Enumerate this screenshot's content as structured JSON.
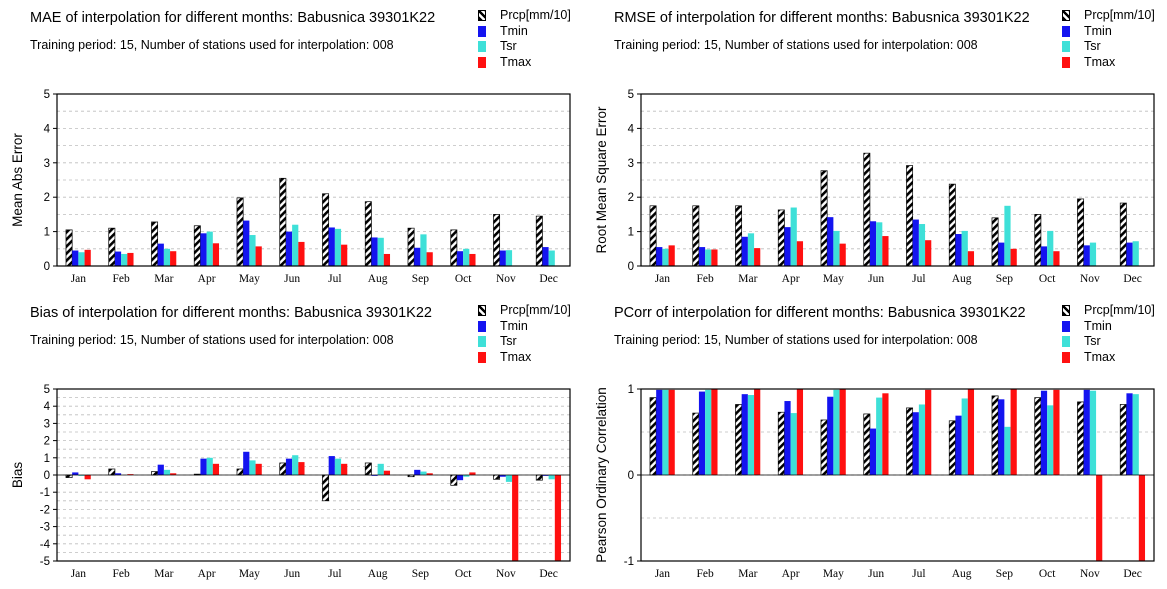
{
  "colors": {
    "prcp": "hatched-black",
    "tmin": "#1414f0",
    "tsr": "#3ee0d8",
    "tmax": "#ff1010"
  },
  "icons": {
    "prcp": "hatched-swatch-icon",
    "tmin": "blue-swatch-icon",
    "tsr": "cyan-swatch-icon",
    "tmax": "red-swatch-icon"
  },
  "legend": [
    "Prcp[mm/10]",
    "Tmin",
    "Tsr",
    "Tmax"
  ],
  "subtitle": "Training period: 15, Number of stations used for interpolation: 008",
  "chart_data": [
    {
      "type": "bar",
      "title": "MAE of interpolation for different months: Babusnica  39301K22",
      "ylabel": "Mean Abs Error",
      "ylim": [
        0,
        5
      ],
      "yticks": [
        0,
        1,
        2,
        3,
        4,
        5
      ],
      "grid": true,
      "legend_position": "top-right",
      "categories": [
        "Jan",
        "Feb",
        "Mar",
        "Apr",
        "May",
        "Jun",
        "Jul",
        "Aug",
        "Sep",
        "Oct",
        "Nov",
        "Dec"
      ],
      "series": [
        {
          "name": "Prcp[mm/10]",
          "values": [
            1.05,
            1.1,
            1.28,
            1.17,
            1.98,
            2.55,
            2.1,
            1.87,
            1.1,
            1.05,
            1.5,
            1.45
          ]
        },
        {
          "name": "Tmin",
          "values": [
            0.45,
            0.42,
            0.65,
            0.95,
            1.32,
            1.0,
            1.12,
            0.83,
            0.53,
            0.43,
            0.45,
            0.55
          ]
        },
        {
          "name": "Tsr",
          "values": [
            0.4,
            0.35,
            0.5,
            1.0,
            0.9,
            1.2,
            1.08,
            0.82,
            0.92,
            0.5,
            0.46,
            0.45
          ]
        },
        {
          "name": "Tmax",
          "values": [
            0.47,
            0.38,
            0.43,
            0.66,
            0.57,
            0.7,
            0.62,
            0.35,
            0.4,
            0.35,
            0.0,
            0.0
          ]
        }
      ]
    },
    {
      "type": "bar",
      "title": "RMSE of interpolation for different months: Babusnica  39301K22",
      "ylabel": "Root Mean Square Error",
      "ylim": [
        0,
        5
      ],
      "yticks": [
        0,
        1,
        2,
        3,
        4,
        5
      ],
      "grid": true,
      "legend_position": "top-right",
      "categories": [
        "Jan",
        "Feb",
        "Mar",
        "Apr",
        "May",
        "Jun",
        "Jul",
        "Aug",
        "Sep",
        "Oct",
        "Nov",
        "Dec"
      ],
      "series": [
        {
          "name": "Prcp[mm/10]",
          "values": [
            1.75,
            1.75,
            1.75,
            1.63,
            2.77,
            3.28,
            2.92,
            2.38,
            1.4,
            1.5,
            1.95,
            1.83
          ]
        },
        {
          "name": "Tmin",
          "values": [
            0.55,
            0.55,
            0.85,
            1.13,
            1.42,
            1.3,
            1.35,
            0.93,
            0.68,
            0.57,
            0.6,
            0.68
          ]
        },
        {
          "name": "Tsr",
          "values": [
            0.5,
            0.48,
            0.95,
            1.7,
            1.02,
            1.27,
            1.22,
            1.02,
            1.75,
            1.02,
            0.68,
            0.72
          ]
        },
        {
          "name": "Tmax",
          "values": [
            0.6,
            0.48,
            0.52,
            0.72,
            0.65,
            0.87,
            0.75,
            0.43,
            0.5,
            0.43,
            0.0,
            0.0
          ]
        }
      ]
    },
    {
      "type": "bar",
      "title": "Bias of interpolation for different months: Babusnica  39301K22",
      "ylabel": "Bias",
      "ylim": [
        -5,
        5
      ],
      "yticks": [
        -5,
        -4,
        -3,
        -2,
        -1,
        0,
        1,
        2,
        3,
        4,
        5
      ],
      "grid": true,
      "legend_position": "top-right",
      "categories": [
        "Jan",
        "Feb",
        "Mar",
        "Apr",
        "May",
        "Jun",
        "Jul",
        "Aug",
        "Sep",
        "Oct",
        "Nov",
        "Dec"
      ],
      "series": [
        {
          "name": "Prcp[mm/10]",
          "values": [
            -0.15,
            0.35,
            0.2,
            0.05,
            0.35,
            0.7,
            -1.5,
            0.7,
            -0.1,
            -0.6,
            -0.25,
            -0.3
          ]
        },
        {
          "name": "Tmin",
          "values": [
            0.15,
            0.1,
            0.6,
            0.95,
            1.35,
            0.95,
            1.1,
            -0.05,
            0.3,
            -0.3,
            -0.1,
            -0.05
          ]
        },
        {
          "name": "Tsr",
          "values": [
            -0.05,
            0.0,
            0.3,
            1.0,
            0.85,
            1.15,
            0.95,
            0.65,
            0.2,
            -0.1,
            -0.4,
            -0.25
          ]
        },
        {
          "name": "Tmax",
          "values": [
            -0.25,
            0.05,
            0.1,
            0.65,
            0.65,
            0.75,
            0.65,
            0.25,
            0.1,
            0.15,
            -5.0,
            -5.0
          ]
        }
      ]
    },
    {
      "type": "bar",
      "title": "PCorr of interpolation for different months: Babusnica  39301K22",
      "ylabel": "Pearson Ordinary Correlation",
      "ylim": [
        -1,
        1
      ],
      "yticks": [
        -1,
        0,
        1
      ],
      "grid": true,
      "legend_position": "top-right",
      "categories": [
        "Jan",
        "Feb",
        "Mar",
        "Apr",
        "May",
        "Jun",
        "Jul",
        "Aug",
        "Sep",
        "Oct",
        "Nov",
        "Dec"
      ],
      "series": [
        {
          "name": "Prcp[mm/10]",
          "values": [
            0.9,
            0.72,
            0.82,
            0.73,
            0.64,
            0.71,
            0.78,
            0.63,
            0.92,
            0.9,
            0.85,
            0.82
          ]
        },
        {
          "name": "Tmin",
          "values": [
            0.99,
            0.97,
            0.94,
            0.86,
            0.91,
            0.54,
            0.73,
            0.69,
            0.88,
            0.98,
            0.99,
            0.95
          ]
        },
        {
          "name": "Tsr",
          "values": [
            0.99,
            0.99,
            0.93,
            0.72,
            0.99,
            0.9,
            0.82,
            0.89,
            0.56,
            0.81,
            0.98,
            0.94
          ]
        },
        {
          "name": "Tmax",
          "values": [
            0.99,
            1.0,
            1.0,
            1.0,
            1.0,
            0.95,
            0.99,
            1.0,
            1.0,
            0.99,
            -1.0,
            -1.0
          ]
        }
      ]
    }
  ]
}
